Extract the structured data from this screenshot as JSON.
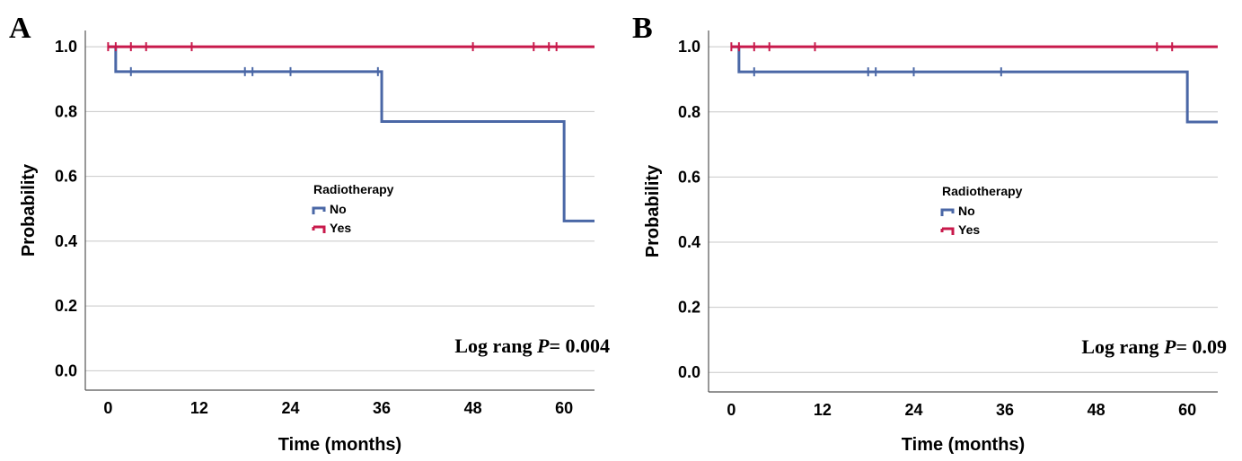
{
  "chart_data": [
    {
      "type": "line",
      "panel_label": "A",
      "xlabel": "Time (months)",
      "ylabel": "Probability",
      "x_ticks": [
        "0",
        "12",
        "24",
        "36",
        "48",
        "60"
      ],
      "y_ticks": [
        "0.0",
        "0.2",
        "0.4",
        "0.6",
        "0.8",
        "1.0"
      ],
      "xlim": [
        -3,
        64
      ],
      "ylim": [
        -0.06,
        1.05
      ],
      "grid": "horizontal",
      "legend": {
        "title": "Radiotherapy",
        "position": "center",
        "entries": [
          "No",
          "Yes"
        ]
      },
      "annotation": {
        "prefix": "Log rang ",
        "p_symbol": "P",
        "suffix": "= 0.004"
      },
      "series": [
        {
          "name": "No",
          "color": "#4a67a6",
          "steps": [
            [
              0,
              1.0
            ],
            [
              1,
              0.923
            ],
            [
              36,
              0.769
            ],
            [
              60,
              0.462
            ],
            [
              64,
              0.462
            ]
          ],
          "censored": [
            [
              3,
              0.923
            ],
            [
              18,
              0.923
            ],
            [
              19,
              0.923
            ],
            [
              24,
              0.923
            ],
            [
              35.5,
              0.923
            ]
          ]
        },
        {
          "name": "Yes",
          "color": "#c8194b",
          "steps": [
            [
              0,
              1.0
            ],
            [
              64,
              1.0
            ]
          ],
          "censored": [
            [
              0,
              1.0
            ],
            [
              1,
              1.0
            ],
            [
              3,
              1.0
            ],
            [
              5,
              1.0
            ],
            [
              11,
              1.0
            ],
            [
              48,
              1.0
            ],
            [
              56,
              1.0
            ],
            [
              58,
              1.0
            ],
            [
              59,
              1.0
            ]
          ]
        }
      ]
    },
    {
      "type": "line",
      "panel_label": "B",
      "xlabel": "Time (months)",
      "ylabel": "Probability",
      "x_ticks": [
        "0",
        "12",
        "24",
        "36",
        "48",
        "60"
      ],
      "y_ticks": [
        "0.0",
        "0.2",
        "0.4",
        "0.6",
        "0.8",
        "1.0"
      ],
      "xlim": [
        -3,
        64
      ],
      "ylim": [
        -0.06,
        1.05
      ],
      "grid": "horizontal",
      "legend": {
        "title": "Radiotherapy",
        "position": "center",
        "entries": [
          "No",
          "Yes"
        ]
      },
      "annotation": {
        "prefix": "Log rang ",
        "p_symbol": "P",
        "suffix": "= 0.09"
      },
      "series": [
        {
          "name": "No",
          "color": "#4a67a6",
          "steps": [
            [
              0,
              1.0
            ],
            [
              1,
              0.923
            ],
            [
              60,
              0.769
            ],
            [
              64,
              0.769
            ]
          ],
          "censored": [
            [
              3,
              0.923
            ],
            [
              18,
              0.923
            ],
            [
              19,
              0.923
            ],
            [
              24,
              0.923
            ],
            [
              35.5,
              0.923
            ]
          ]
        },
        {
          "name": "Yes",
          "color": "#c8194b",
          "steps": [
            [
              0,
              1.0
            ],
            [
              64,
              1.0
            ]
          ],
          "censored": [
            [
              0,
              1.0
            ],
            [
              1,
              1.0
            ],
            [
              3,
              1.0
            ],
            [
              5,
              1.0
            ],
            [
              11,
              1.0
            ],
            [
              56,
              1.0
            ],
            [
              58,
              1.0
            ]
          ]
        }
      ]
    }
  ]
}
